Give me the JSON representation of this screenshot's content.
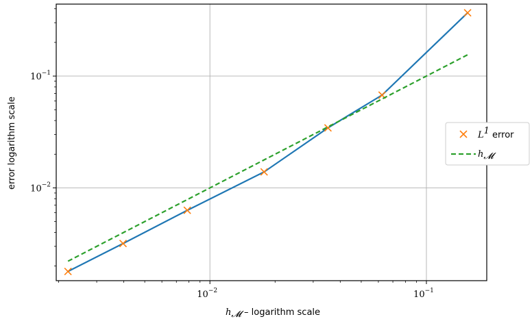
{
  "chart_data": {
    "type": "line",
    "x_scale": "log",
    "y_scale": "log",
    "grid": true,
    "xlim": [
      0.00195,
      0.19
    ],
    "ylim": [
      0.00148,
      0.44
    ],
    "x_ticks": [
      {
        "value": 0.01,
        "label": "10",
        "exp": "−2"
      },
      {
        "value": 0.1,
        "label": "10",
        "exp": "−1"
      }
    ],
    "y_ticks": [
      {
        "value": 0.01,
        "label": "10",
        "exp": "−2"
      },
      {
        "value": 0.1,
        "label": "10",
        "exp": "−1"
      }
    ],
    "xlabel": {
      "math": "h",
      "sub": "𝓜",
      "text": " – logarithm scale"
    },
    "ylabel": "error logarithm scale",
    "legend_position": "center-right (outside)",
    "series": [
      {
        "name": {
          "math": "L",
          "sup": "1",
          "text": " error"
        },
        "kind": "line+markers",
        "line_color": "#1f77b4",
        "marker_color": "#ff7f0e",
        "marker": "x",
        "x": [
          0.00221,
          0.00397,
          0.00786,
          0.0178,
          0.0351,
          0.0624,
          0.155
        ],
        "y": [
          0.00179,
          0.00318,
          0.0063,
          0.0139,
          0.0344,
          0.0676,
          0.368
        ]
      },
      {
        "name": {
          "math": "h",
          "sub": "𝓜",
          "text": ""
        },
        "kind": "dashed-line",
        "line_color": "#2ca02c",
        "x": [
          0.00221,
          0.155
        ],
        "y": [
          0.00221,
          0.155
        ]
      }
    ]
  }
}
